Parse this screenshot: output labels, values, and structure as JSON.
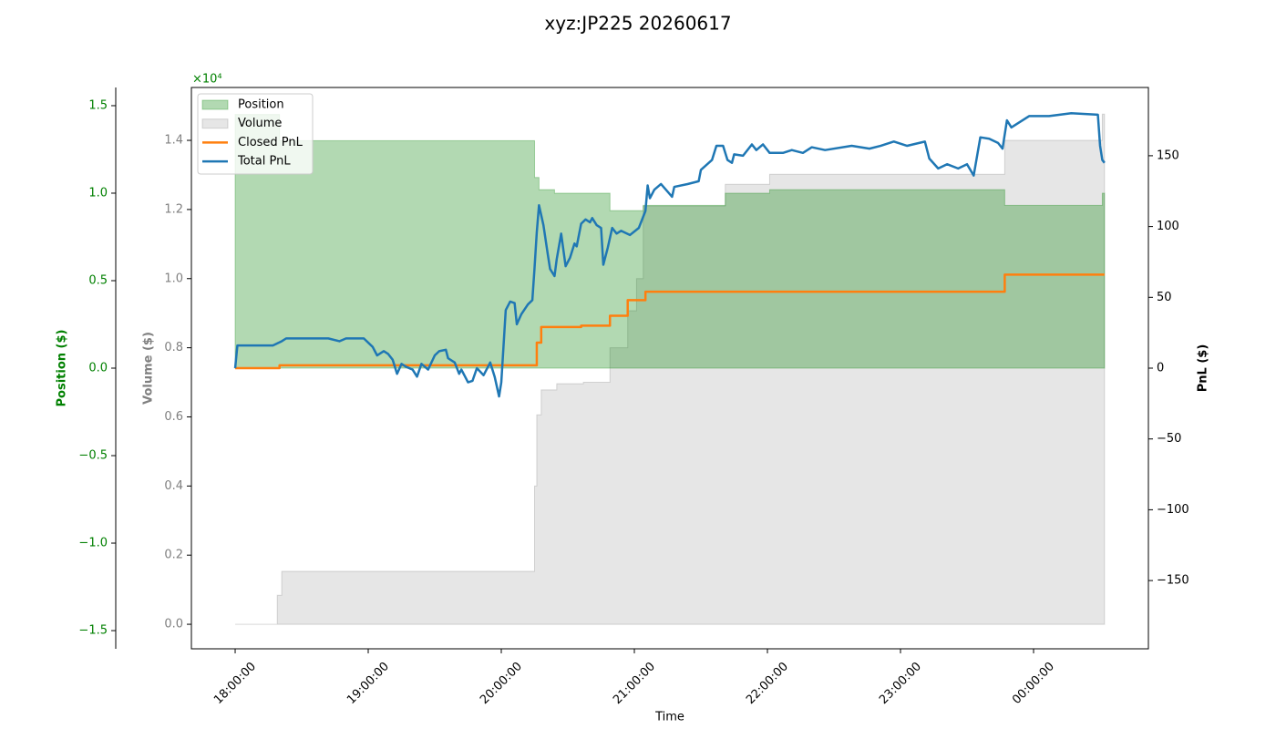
{
  "chart_data": {
    "type": "line",
    "title": "xyz:JP225 20260617",
    "xlabel": "Time",
    "ylabel": "Position ($)",
    "y_offset_label": "×10⁴",
    "y2label": "PnL ($)",
    "y3label": "Volume ($)",
    "legend": "upper left",
    "xlim": [
      "17:40:16",
      "00:51:47"
    ],
    "xticks": [
      "18:00:00",
      "19:00:00",
      "20:00:00",
      "21:00:00",
      "22:00:00",
      "23:00:00",
      "00:00:00"
    ],
    "ylim": [
      -1.604,
      1.604
    ],
    "yticks": [
      {
        "value": -1.5,
        "label": "−1.5"
      },
      {
        "value": -1.0,
        "label": "−1.0"
      },
      {
        "value": -0.5,
        "label": "−0.5"
      },
      {
        "value": 0,
        "label": "0.0"
      },
      0.5,
      {
        "value": 1.0,
        "label": "1.0"
      },
      1.5
    ],
    "y3lim": [
      -0.071,
      1.553
    ],
    "y3ticks": [
      {
        "value": 0,
        "label": "0.0"
      },
      0.2,
      0.4,
      0.6,
      0.8,
      {
        "value": 1.0,
        "label": "1.0"
      },
      1.2,
      1.4
    ],
    "y2lim": [
      -198.2,
      198.2
    ],
    "y2ticks": [
      {
        "value": -150,
        "label": "−150"
      },
      {
        "value": -100,
        "label": "−100"
      },
      {
        "value": -50,
        "label": "−50"
      },
      0,
      50,
      100,
      150
    ],
    "series": [
      {
        "name": "Position",
        "type": "area",
        "step": true,
        "color": "#008000",
        "axis": "y",
        "x": [
          "18:00:00",
          "18:20:00",
          "20:15:00",
          "20:17:00",
          "20:24:00",
          "20:49:00",
          "21:04:00",
          "21:41:00",
          "22:01:00",
          "23:47:00",
          "00:31:00",
          "00:32:00"
        ],
        "values": [
          1.45,
          1.3,
          1.09,
          1.02,
          1.0,
          0.9,
          0.93,
          1.0,
          1.02,
          0.93,
          1.0,
          1.0
        ]
      },
      {
        "name": "Volume",
        "type": "area",
        "step": true,
        "color": "#808080",
        "axis": "y3",
        "x": [
          "18:00:00",
          "18:19:00",
          "18:21:00",
          "20:15:00",
          "20:16:00",
          "20:18:00",
          "20:25:00",
          "20:37:00",
          "20:49:00",
          "20:57:00",
          "21:01:00",
          "21:04:00",
          "21:41:00",
          "22:01:00",
          "23:47:00",
          "00:31:00",
          "00:32:00"
        ],
        "values": [
          0,
          0.084,
          0.153,
          0.4,
          0.606,
          0.678,
          0.696,
          0.7,
          0.8,
          0.907,
          1.0,
          1.21,
          1.273,
          1.302,
          1.4,
          1.476,
          1.476
        ]
      },
      {
        "name": "Closed PnL",
        "type": "line",
        "step": true,
        "color": "#ff7f0e",
        "axis": "y2",
        "x": [
          "18:00:00",
          "18:20:00",
          "20:16:00",
          "20:18:00",
          "20:36:00",
          "20:49:00",
          "20:57:00",
          "21:05:00",
          "23:47:00",
          "00:32:00"
        ],
        "values": [
          0,
          2,
          18,
          29,
          30,
          37,
          48,
          54,
          66,
          66
        ]
      },
      {
        "name": "Total PnL",
        "type": "line",
        "step": false,
        "color": "#1f77b4",
        "axis": "y2",
        "x": [
          "18:00:00",
          "18:01:00",
          "18:17:00",
          "18:21:00",
          "18:23:00",
          "18:42:00",
          "18:47:00",
          "18:50:00",
          "18:58:00",
          "19:02:00",
          "19:04:00",
          "19:07:00",
          "19:09:00",
          "19:11:00",
          "19:13:00",
          "19:15:00",
          "19:17:00",
          "19:20:00",
          "19:22:00",
          "19:24:00",
          "19:27:00",
          "19:30:00",
          "19:32:00",
          "19:35:00",
          "19:36:00",
          "19:39:00",
          "19:41:00",
          "19:42:00",
          "19:45:00",
          "19:47:00",
          "19:49:00",
          "19:52:00",
          "19:55:00",
          "19:57:00",
          "19:59:00",
          "20:00:00",
          "20:02:00",
          "20:04:00",
          "20:06:00",
          "20:07:00",
          "20:09:00",
          "20:12:00",
          "20:14:00",
          "20:15:00",
          "20:16:00",
          "20:17:00",
          "20:19:00",
          "20:21:00",
          "20:22:00",
          "20:24:00",
          "20:25:00",
          "20:27:00",
          "20:29:00",
          "20:31:00",
          "20:33:00",
          "20:34:00",
          "20:36:00",
          "20:38:00",
          "20:40:00",
          "20:41:00",
          "20:43:00",
          "20:45:00",
          "20:46:00",
          "20:48:00",
          "20:50:00",
          "20:52:00",
          "20:54:00",
          "20:58:00",
          "21:02:00",
          "21:05:00",
          "21:06:00",
          "21:07:00",
          "21:09:00",
          "21:12:00",
          "21:17:00",
          "21:18:00",
          "21:24:00",
          "21:29:00",
          "21:30:00",
          "21:35:00",
          "21:37:00",
          "21:40:00",
          "21:42:00",
          "21:44:00",
          "21:45:00",
          "21:49:00",
          "21:53:00",
          "21:55:00",
          "21:58:00",
          "22:01:00",
          "22:07:00",
          "22:11:00",
          "22:16:00",
          "22:20:00",
          "22:26:00",
          "22:38:00",
          "22:46:00",
          "22:51:00",
          "22:57:00",
          "23:03:00",
          "23:11:00",
          "23:13:00",
          "23:17:00",
          "23:21:00",
          "23:26:00",
          "23:30:00",
          "23:33:00",
          "23:36:00",
          "23:40:00",
          "23:44:00",
          "23:46:00",
          "23:48:00",
          "23:50:00",
          "23:58:00",
          "00:07:00",
          "00:17:00",
          "00:29:00",
          "00:30:00",
          "00:31:00",
          "00:32:00"
        ],
        "values": [
          0,
          16,
          16,
          19,
          21,
          21,
          19,
          21,
          21,
          15,
          9,
          12,
          10,
          6,
          -4,
          3,
          1,
          -1,
          -6,
          3,
          -1,
          9,
          12,
          13,
          7,
          4,
          -4,
          -1,
          -10,
          -9,
          0,
          -5,
          4,
          -6,
          -20,
          -10,
          41,
          47,
          46,
          31,
          38,
          45,
          48,
          71,
          96,
          115,
          101,
          80,
          70,
          65,
          77,
          95,
          72,
          78,
          88,
          86,
          102,
          105,
          103,
          106,
          101,
          99,
          73,
          85,
          99,
          95,
          97,
          94,
          99,
          111,
          129,
          120,
          126,
          130,
          121,
          128,
          130,
          132,
          140,
          147,
          157,
          157,
          147,
          145,
          151,
          150,
          158,
          154,
          158,
          152,
          152,
          154,
          152,
          156,
          154,
          157,
          155,
          157,
          160,
          157,
          160,
          148,
          141,
          144,
          141,
          144,
          136,
          163,
          162,
          159,
          155,
          175,
          170,
          178,
          178,
          180,
          179,
          157,
          147,
          145
        ]
      }
    ]
  }
}
